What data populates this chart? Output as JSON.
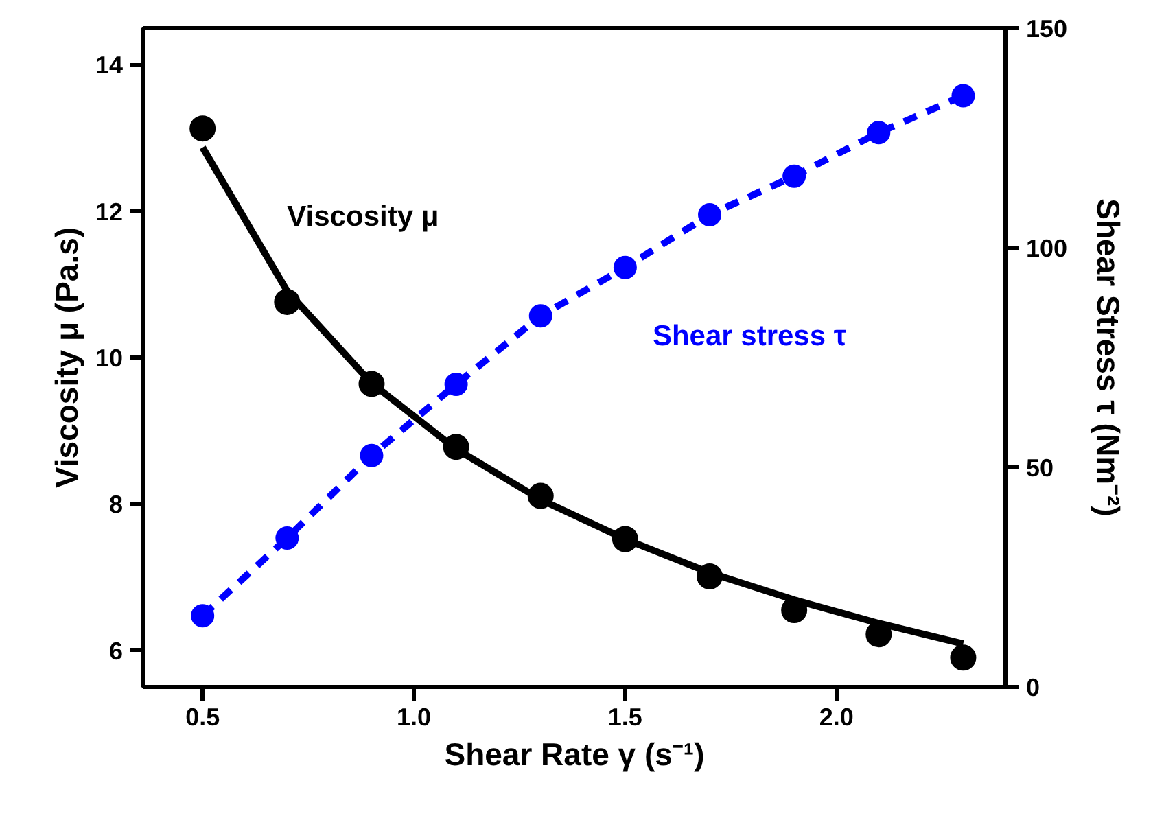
{
  "chart_data": {
    "type": "scatter",
    "xlabel": "Shear Rate γ (s⁻¹)",
    "ylabel": "Viscosity μ (Pa.s)",
    "y2label": "Shear Stress τ (Nm⁻²)",
    "x": [
      0.5,
      0.7,
      0.9,
      1.1,
      1.3,
      1.5,
      1.7,
      1.9,
      2.1,
      2.3
    ],
    "series": [
      {
        "name": "Viscosity μ",
        "color": "#000000",
        "marker": "circle",
        "values": [
          13.13,
          10.76,
          9.64,
          8.78,
          8.11,
          7.52,
          7.01,
          6.55,
          6.22,
          5.9
        ]
      },
      {
        "type": "line",
        "color": "#000000",
        "marker": "none",
        "line_style": "solid",
        "x": [
          0.5,
          0.7,
          0.9,
          1.1,
          1.3,
          1.5,
          1.7,
          1.9,
          2.1,
          2.3
        ],
        "values": [
          12.87,
          10.91,
          9.65,
          8.75,
          8.06,
          7.52,
          7.06,
          6.69,
          6.37,
          6.09
        ]
      },
      {
        "type": "line",
        "name": "Shear stress τ",
        "axis": "y2",
        "color": "#0000ff",
        "marker": "circle",
        "line_style": "dashed",
        "values": [
          16.2,
          33.9,
          52.7,
          68.9,
          84.5,
          95.5,
          107.5,
          116.3,
          126.2,
          134.6
        ]
      }
    ],
    "xlim": [
      0.36,
      2.4
    ],
    "xticks": [
      {
        "value": 0.5,
        "label": "0.5"
      },
      {
        "value": 1.0,
        "label": "1.0"
      },
      {
        "value": 1.5,
        "label": "1.5"
      },
      {
        "value": 2.0,
        "label": "2.0"
      }
    ],
    "ylim": [
      5.5,
      14.5
    ],
    "yticks": [
      6,
      8,
      10,
      12,
      14
    ],
    "y2lim": [
      0,
      150
    ],
    "y2ticks": [
      0,
      50,
      100,
      150
    ],
    "grid": false
  }
}
